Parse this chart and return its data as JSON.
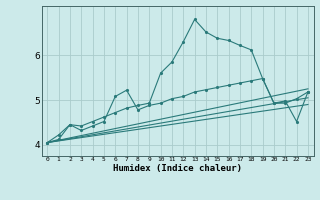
{
  "xlabel": "Humidex (Indice chaleur)",
  "bg_color": "#cceaea",
  "line_color": "#2a7a7a",
  "grid_color": "#aacccc",
  "xlim": [
    -0.5,
    23.5
  ],
  "ylim": [
    3.75,
    7.1
  ],
  "yticks": [
    4,
    5,
    6
  ],
  "xticks": [
    0,
    1,
    2,
    3,
    4,
    5,
    6,
    7,
    8,
    9,
    10,
    11,
    12,
    13,
    14,
    15,
    16,
    17,
    18,
    19,
    20,
    21,
    22,
    23
  ],
  "series1_x": [
    0,
    1,
    2,
    3,
    4,
    5,
    6,
    7,
    8,
    9,
    10,
    11,
    12,
    13,
    14,
    15,
    16,
    17,
    18,
    19,
    20,
    21,
    22,
    23
  ],
  "series1_y": [
    4.05,
    4.22,
    4.45,
    4.42,
    4.52,
    4.62,
    4.72,
    4.82,
    4.88,
    4.93,
    5.6,
    5.85,
    6.3,
    6.8,
    6.52,
    6.38,
    6.33,
    6.22,
    6.12,
    5.48,
    4.93,
    4.93,
    5.03,
    5.18
  ],
  "series2_x": [
    0,
    1,
    2,
    3,
    4,
    5,
    6,
    7,
    8,
    9,
    10,
    11,
    12,
    13,
    14,
    15,
    16,
    17,
    18,
    19,
    20,
    21,
    22,
    23
  ],
  "series2_y": [
    4.05,
    4.12,
    4.45,
    4.32,
    4.42,
    4.52,
    5.08,
    5.22,
    4.78,
    4.88,
    4.93,
    5.03,
    5.08,
    5.18,
    5.23,
    5.28,
    5.33,
    5.38,
    5.43,
    5.48,
    4.93,
    4.98,
    4.52,
    5.18
  ],
  "series3_x": [
    0,
    23
  ],
  "series3_y": [
    4.05,
    5.25
  ],
  "series4_x": [
    0,
    23
  ],
  "series4_y": [
    4.05,
    5.05
  ],
  "series5_x": [
    0,
    23
  ],
  "series5_y": [
    4.05,
    4.9
  ]
}
